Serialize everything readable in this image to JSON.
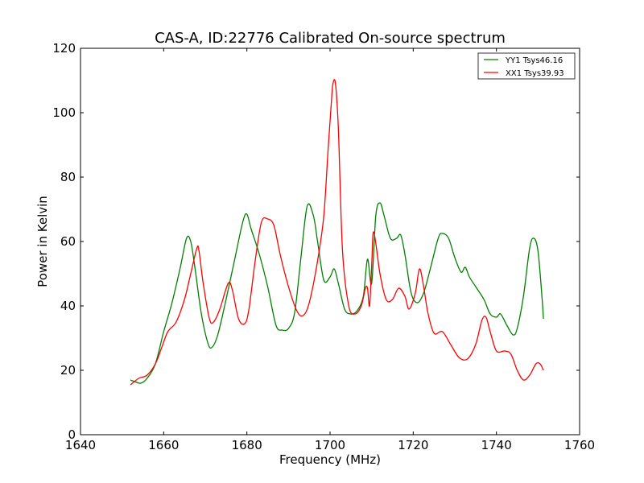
{
  "chart_data": {
    "type": "line",
    "title": "CAS-A, ID:22776 Calibrated On-source spectrum",
    "xlabel": "Frequency (MHz)",
    "ylabel": "Power in Kelvin",
    "xlim": [
      1640,
      1760
    ],
    "ylim": [
      0,
      120
    ],
    "xticks": [
      1640,
      1660,
      1680,
      1700,
      1720,
      1740,
      1760
    ],
    "yticks": [
      0,
      20,
      40,
      60,
      80,
      100,
      120
    ],
    "grid": false,
    "legend_position": "top-right",
    "series": [
      {
        "name": "YY1 Tsys46.16",
        "color": "#008000",
        "x": [
          1652,
          1653,
          1654.5,
          1656,
          1658,
          1660,
          1662,
          1664,
          1665.5,
          1666.5,
          1667.5,
          1669,
          1670.5,
          1671.5,
          1673,
          1675,
          1677,
          1679,
          1680,
          1681,
          1683,
          1685,
          1687,
          1688.5,
          1690,
          1691.5,
          1693,
          1694.5,
          1696,
          1697,
          1698.5,
          1700,
          1701,
          1702,
          1703.5,
          1705,
          1706.5,
          1708,
          1709,
          1710,
          1711,
          1712,
          1713,
          1714.5,
          1716,
          1717,
          1718,
          1719.5,
          1721,
          1722.5,
          1724,
          1726,
          1727,
          1728.5,
          1730,
          1731.5,
          1732.5,
          1733.5,
          1735,
          1737,
          1738.5,
          1740,
          1741,
          1742.5,
          1744,
          1745,
          1746.5,
          1748,
          1749,
          1750,
          1751,
          1751.3
        ],
        "y": [
          17,
          16.5,
          16,
          17.5,
          22,
          32,
          41,
          52,
          61,
          60,
          52,
          38,
          29,
          27,
          31,
          42,
          54,
          66,
          68.5,
          64,
          56,
          46,
          34,
          32.5,
          33,
          38,
          55,
          71,
          68,
          60,
          48,
          49,
          51.5,
          47,
          39,
          37.5,
          38.5,
          43,
          54.5,
          47,
          68,
          72,
          68,
          61,
          61,
          62,
          56,
          44,
          41,
          44,
          51,
          61,
          62.5,
          61,
          55,
          50.5,
          52,
          49,
          46,
          42,
          37.5,
          36.5,
          37.5,
          34,
          31,
          33,
          43,
          58,
          61,
          57,
          42,
          36
        ]
      },
      {
        "name": "XX1 Tsys39.93",
        "color": "#ff0000",
        "x": [
          1652,
          1654,
          1656,
          1658,
          1659.5,
          1661,
          1663,
          1665,
          1666.5,
          1668,
          1668.5,
          1669.5,
          1671,
          1672,
          1673.5,
          1675.5,
          1676.5,
          1678,
          1679.5,
          1680.5,
          1682,
          1683.5,
          1685,
          1686.5,
          1688,
          1690,
          1692,
          1693.5,
          1695,
          1697,
          1698.5,
          1699.5,
          1700.3,
          1700.7,
          1701.3,
          1702,
          1703,
          1704.5,
          1706,
          1707.5,
          1708.5,
          1709,
          1709.5,
          1710,
          1710.5,
          1712,
          1713.5,
          1715,
          1716.5,
          1718,
          1719,
          1720.5,
          1721.5,
          1722.5,
          1723.5,
          1725,
          1727,
          1729,
          1731,
          1733,
          1735,
          1736.5,
          1737.5,
          1738.5,
          1740,
          1742,
          1743.5,
          1745,
          1746.5,
          1748,
          1749.5,
          1750.5,
          1751.3
        ],
        "y": [
          15.5,
          17.5,
          18.5,
          22,
          27,
          32,
          35,
          42,
          50,
          58,
          57,
          47,
          36,
          35,
          39,
          47,
          45,
          36,
          34.5,
          39,
          54,
          66,
          67,
          65,
          56,
          46,
          38.5,
          37,
          41,
          54,
          68,
          88,
          103,
          109,
          109,
          95,
          57,
          40,
          37.5,
          40,
          45.5,
          45.5,
          40,
          52,
          63,
          50,
          42,
          42,
          45.5,
          43,
          39,
          44,
          51.5,
          46,
          38,
          31.5,
          32,
          28,
          24,
          23.5,
          28,
          35.5,
          36.5,
          32,
          26,
          26,
          25,
          20,
          17,
          18.5,
          22,
          22,
          20
        ]
      }
    ]
  }
}
